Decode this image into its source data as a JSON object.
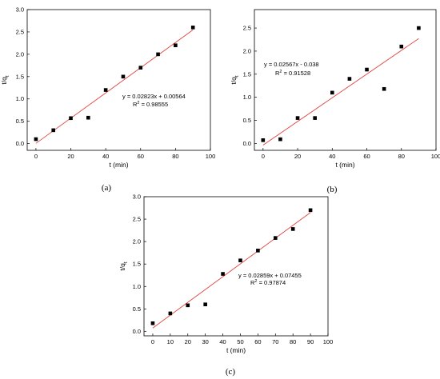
{
  "colors": {
    "fit_line": "#e0443e",
    "points": "#000000",
    "axes": "#000000",
    "background": "#ffffff"
  },
  "chart_data": [
    {
      "type": "scatter",
      "caption": "(a)",
      "xlabel": "t (min)",
      "ylabel": "t/q",
      "ylabel_subscript": "t",
      "xlim": [
        -5,
        100
      ],
      "ylim": [
        -0.15,
        3.0
      ],
      "xticks": [
        "0",
        "20",
        "40",
        "60",
        "80",
        "100"
      ],
      "yticks": [
        "0.0",
        "0.5",
        "1.0",
        "1.5",
        "2.0",
        "2.5",
        "3.0"
      ],
      "x": [
        0,
        10,
        20,
        30,
        40,
        50,
        60,
        70,
        80,
        90
      ],
      "y": [
        0.1,
        0.3,
        0.57,
        0.58,
        1.2,
        1.5,
        1.7,
        2.0,
        2.2,
        2.6
      ],
      "fit": {
        "slope": 0.02823,
        "intercept": 0.00564,
        "x_range": [
          0,
          90
        ]
      },
      "equation": "y = 0.02823x + 0.00564",
      "r2_label": "R",
      "r2_value": " = 0.98555",
      "legend": "",
      "grid": false
    },
    {
      "type": "scatter",
      "caption": "(b)",
      "xlabel": "t (min)",
      "ylabel": "t/q",
      "ylabel_subscript": "t",
      "xlim": [
        -5,
        100
      ],
      "ylim": [
        -0.15,
        2.9
      ],
      "xticks": [
        "0",
        "20",
        "40",
        "60",
        "80",
        "100"
      ],
      "yticks": [
        "0.0",
        "0.5",
        "1.0",
        "1.5",
        "2.0",
        "2.5"
      ],
      "x": [
        0,
        10,
        20,
        30,
        40,
        50,
        60,
        70,
        80,
        90
      ],
      "y": [
        0.07,
        0.09,
        0.55,
        0.55,
        1.1,
        1.4,
        1.6,
        1.18,
        2.1,
        2.5
      ],
      "fit": {
        "slope": 0.02567,
        "intercept": -0.038,
        "x_range": [
          0,
          90
        ]
      },
      "equation": "y = 0.02567x - 0.038",
      "r2_label": "R",
      "r2_value": " = 0.91528",
      "legend": "",
      "grid": false
    },
    {
      "type": "scatter",
      "caption": "(c)",
      "xlabel": "t (min)",
      "ylabel": "t/q",
      "ylabel_subscript": "t",
      "xlim": [
        -5,
        100
      ],
      "ylim": [
        -0.1,
        3.0
      ],
      "xticks": [
        "0",
        "10",
        "20",
        "30",
        "40",
        "50",
        "60",
        "70",
        "80",
        "90",
        "100"
      ],
      "yticks": [
        "0.0",
        "0.5",
        "1.0",
        "1.5",
        "2.0",
        "2.5",
        "3.0"
      ],
      "x": [
        0,
        10,
        20,
        30,
        40,
        50,
        60,
        70,
        80,
        90
      ],
      "y": [
        0.18,
        0.4,
        0.58,
        0.6,
        1.28,
        1.58,
        1.8,
        2.08,
        2.28,
        2.7
      ],
      "fit": {
        "slope": 0.02859,
        "intercept": 0.07455,
        "x_range": [
          0,
          90
        ]
      },
      "equation": "y = 0.02859x + 0.07455",
      "r2_label": "R",
      "r2_value": " = 0.97874",
      "legend": "",
      "grid": false
    }
  ]
}
